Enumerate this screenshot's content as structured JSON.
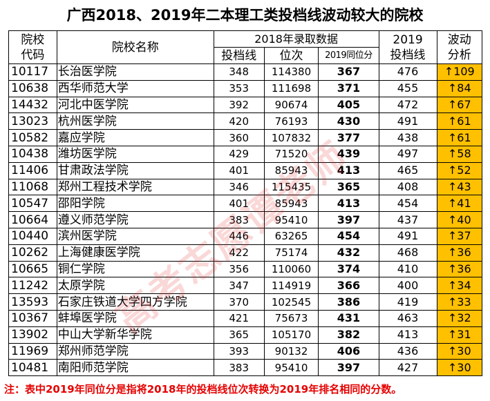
{
  "title": "广西2018、2019年二本理工类投档线波动较大的院校",
  "headers": {
    "code_line1": "院校",
    "code_line2": "代码",
    "name": "院校名称",
    "group_2018": "2018年录取数据",
    "score": "投档线",
    "rank": "位次",
    "equiv": "2019同位分",
    "year_2019": "2019",
    "line_2019": "投档线",
    "wave_line1": "波动",
    "wave_line2": "分析"
  },
  "rows": [
    {
      "code": "10117",
      "name": "长治医学院",
      "score": "348",
      "rank": "114380",
      "equiv": "367",
      "line2019": "476",
      "wave": "↑109"
    },
    {
      "code": "10638",
      "name": "西华师范大学",
      "score": "353",
      "rank": "111698",
      "equiv": "371",
      "line2019": "455",
      "wave": "↑84"
    },
    {
      "code": "14432",
      "name": "河北中医学院",
      "score": "392",
      "rank": "90674",
      "equiv": "405",
      "line2019": "472",
      "wave": "↑67"
    },
    {
      "code": "13023",
      "name": "杭州医学院",
      "score": "420",
      "rank": "76193",
      "equiv": "430",
      "line2019": "491",
      "wave": "↑61"
    },
    {
      "code": "10582",
      "name": "嘉应学院",
      "score": "360",
      "rank": "107832",
      "equiv": "377",
      "line2019": "438",
      "wave": "↑61"
    },
    {
      "code": "10438",
      "name": "潍坊医学院",
      "score": "429",
      "rank": "71520",
      "equiv": "439",
      "line2019": "497",
      "wave": "↑58"
    },
    {
      "code": "11406",
      "name": "甘肃政法学院",
      "score": "401",
      "rank": "85943",
      "equiv": "413",
      "line2019": "465",
      "wave": "↑52"
    },
    {
      "code": "11068",
      "name": "郑州工程技术学院",
      "score": "346",
      "rank": "115435",
      "equiv": "365",
      "line2019": "408",
      "wave": "↑43"
    },
    {
      "code": "10547",
      "name": "邵阳学院",
      "score": "401",
      "rank": "85943",
      "equiv": "413",
      "line2019": "454",
      "wave": "↑41"
    },
    {
      "code": "10664",
      "name": "遵义师范学院",
      "score": "383",
      "rank": "95410",
      "equiv": "397",
      "line2019": "437",
      "wave": "↑40"
    },
    {
      "code": "10440",
      "name": "滨州医学院",
      "score": "446",
      "rank": "63265",
      "equiv": "454",
      "line2019": "491",
      "wave": "↑37"
    },
    {
      "code": "10262",
      "name": "上海健康医学院",
      "score": "422",
      "rank": "75174",
      "equiv": "432",
      "line2019": "468",
      "wave": "↑36"
    },
    {
      "code": "10665",
      "name": "铜仁学院",
      "score": "356",
      "rank": "110060",
      "equiv": "374",
      "line2019": "410",
      "wave": "↑36"
    },
    {
      "code": "11242",
      "name": "太原学院",
      "score": "347",
      "rank": "114919",
      "equiv": "366",
      "line2019": "400",
      "wave": "↑34"
    },
    {
      "code": "13593",
      "name": "石家庄铁道大学四方学院",
      "score": "370",
      "rank": "102545",
      "equiv": "386",
      "line2019": "419",
      "wave": "↑33"
    },
    {
      "code": "10367",
      "name": "蚌埠医学院",
      "score": "421",
      "rank": "75673",
      "equiv": "431",
      "line2019": "463",
      "wave": "↑32"
    },
    {
      "code": "13902",
      "name": "中山大学新华学院",
      "score": "365",
      "rank": "105170",
      "equiv": "382",
      "line2019": "413",
      "wave": "↑31"
    },
    {
      "code": "11969",
      "name": "郑州师范学院",
      "score": "393",
      "rank": "90132",
      "equiv": "406",
      "line2019": "436",
      "wave": "↑30"
    },
    {
      "code": "10481",
      "name": "南阳师范学院",
      "score": "383",
      "rank": "95410",
      "equiv": "397",
      "line2019": "427",
      "wave": "↑30"
    }
  ],
  "note": "注：表中2019年同位分是指将2018年的投档线位次转换为2019年排名相同的分数。",
  "watermark": "高考志愿谭老师",
  "colors": {
    "wave_bg": "#ffc000",
    "note_text": "#e60000"
  }
}
